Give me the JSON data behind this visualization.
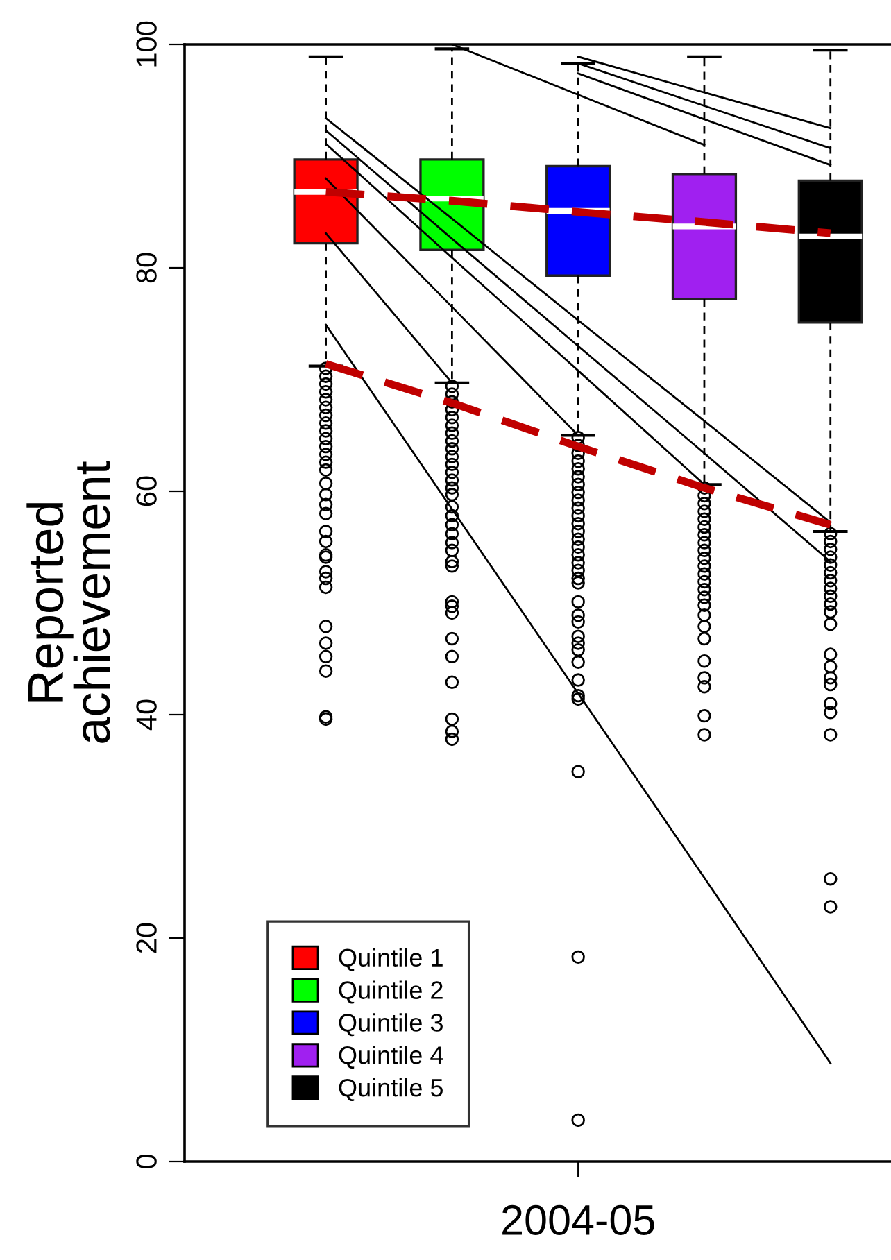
{
  "chart_data": {
    "type": "box",
    "ylabel": "Reported\nachievement",
    "categories": [
      null,
      null,
      "2004-05",
      null,
      null
    ],
    "ylim": [
      0,
      100
    ],
    "yticks": [
      0,
      20,
      40,
      60,
      80,
      100
    ],
    "grid": false,
    "legend": "bottom left",
    "series": [
      {
        "name": "Quintile 1",
        "color": "#ff0000",
        "boxes": [
          {
            "low": 71.2,
            "q1": 82.2,
            "median": 86.8,
            "q3": 89.7,
            "high": 98.9,
            "outliers": [
              71.0,
              70.3,
              69.6,
              68.9,
              68.2,
              67.5,
              66.8,
              66.1,
              65.4,
              64.7,
              64.0,
              63.3,
              62.6,
              61.9,
              60.7,
              59.7,
              58.8,
              58.0,
              56.4,
              55.5,
              54.3,
              54.1,
              52.8,
              52.2,
              51.4,
              47.9,
              46.4,
              45.2,
              43.9,
              39.8,
              39.6
            ]
          },
          null,
          null,
          null,
          null
        ]
      },
      {
        "name": "Quintile 2",
        "color": "#00ff00",
        "boxes": [
          null,
          {
            "low": 69.7,
            "q1": 81.6,
            "median": 86.2,
            "q3": 89.7,
            "high": 99.6,
            "outliers": [
              69.4,
              68.7,
              68.0,
              67.3,
              66.6,
              65.9,
              65.2,
              64.5,
              63.8,
              63.1,
              62.4,
              61.7,
              61.0,
              60.3,
              59.7,
              58.6,
              57.8,
              57.0,
              56.2,
              55.4,
              54.7,
              53.7,
              53.3,
              50.1,
              49.7,
              49.1,
              46.8,
              45.2,
              42.9,
              39.6,
              38.5,
              37.8
            ]
          },
          null,
          null,
          null
        ]
      },
      {
        "name": "Quintile 3",
        "color": "#0000ff",
        "boxes": [
          null,
          null,
          {
            "low": 65.0,
            "q1": 79.3,
            "median": 85.1,
            "q3": 89.1,
            "high": 98.3,
            "outliers": [
              64.8,
              64.1,
              63.4,
              62.7,
              62.0,
              61.3,
              60.6,
              59.9,
              59.2,
              58.5,
              57.8,
              57.1,
              56.4,
              55.7,
              55.0,
              54.3,
              53.6,
              52.9,
              52.2,
              51.8,
              50.1,
              48.9,
              48.3,
              47.0,
              46.4,
              45.8,
              44.7,
              43.1,
              41.7,
              41.4,
              34.9,
              18.3,
              3.7
            ]
          },
          null,
          null
        ]
      },
      {
        "name": "Quintile 4",
        "color": "#a020f0",
        "boxes": [
          null,
          null,
          null,
          {
            "low": 60.6,
            "q1": 77.2,
            "median": 83.7,
            "q3": 88.4,
            "high": 98.9,
            "outliers": [
              60.3,
              59.6,
              58.9,
              58.2,
              57.5,
              56.8,
              56.1,
              55.4,
              54.7,
              54.0,
              53.3,
              52.6,
              51.9,
              51.2,
              50.5,
              49.8,
              48.9,
              47.9,
              46.8,
              44.8,
              43.3,
              42.5,
              39.9,
              38.2
            ]
          },
          null
        ]
      },
      {
        "name": "Quintile 5",
        "color": "#000000",
        "boxes": [
          null,
          null,
          null,
          null,
          {
            "low": 56.4,
            "q1": 75.1,
            "median": 82.8,
            "q3": 87.8,
            "high": 99.5,
            "outliers": [
              56.2,
              55.5,
              54.8,
              54.1,
              53.4,
              52.7,
              52.0,
              51.3,
              50.6,
              49.9,
              49.2,
              48.1,
              45.4,
              44.3,
              43.3,
              42.7,
              41.0,
              40.2,
              38.2,
              25.3,
              22.8
            ]
          }
        ]
      },
      {
        "type": "line",
        "color": "#000000",
        "values": [
          74.9,
          58.4,
          41.9,
          25.4,
          8.8
        ]
      },
      {
        "type": "line",
        "color": "#000000",
        "values": [
          92.3,
          82.6,
          73.0,
          63.4,
          53.7
        ]
      },
      {
        "type": "line",
        "color": "#000000",
        "values": [
          83.1,
          69.7,
          null,
          null,
          null
        ]
      },
      {
        "type": "line",
        "color": "#000000",
        "values": [
          88.0,
          76.5,
          65.0,
          null,
          null
        ]
      },
      {
        "type": "line",
        "color": "#000000",
        "values": [
          91.1,
          80.9,
          70.8,
          60.6,
          null
        ]
      },
      {
        "type": "line",
        "color": "#000000",
        "values": [
          93.4,
          84.4,
          75.3,
          66.3,
          57.2
        ]
      },
      {
        "type": "line",
        "color": "#000000",
        "values": [
          null,
          100.0,
          95.5,
          91.0,
          null
        ]
      },
      {
        "type": "line",
        "color": "#000000",
        "values": [
          null,
          null,
          97.4,
          93.3,
          89.2
        ]
      },
      {
        "type": "line",
        "color": "#000000",
        "values": [
          null,
          null,
          98.3,
          94.5,
          90.7
        ]
      },
      {
        "type": "line",
        "color": "#000000",
        "values": [
          null,
          null,
          98.9,
          95.7,
          92.5
        ]
      },
      {
        "type": "line",
        "color": "#c00000",
        "line_style": "dashed",
        "values": [
          86.8,
          86.0,
          85.0,
          84.1,
          83.1
        ]
      },
      {
        "type": "line",
        "color": "#c00000",
        "line_style": "dashed",
        "values": [
          71.4,
          67.9,
          64.0,
          60.3,
          57.0
        ]
      }
    ]
  }
}
